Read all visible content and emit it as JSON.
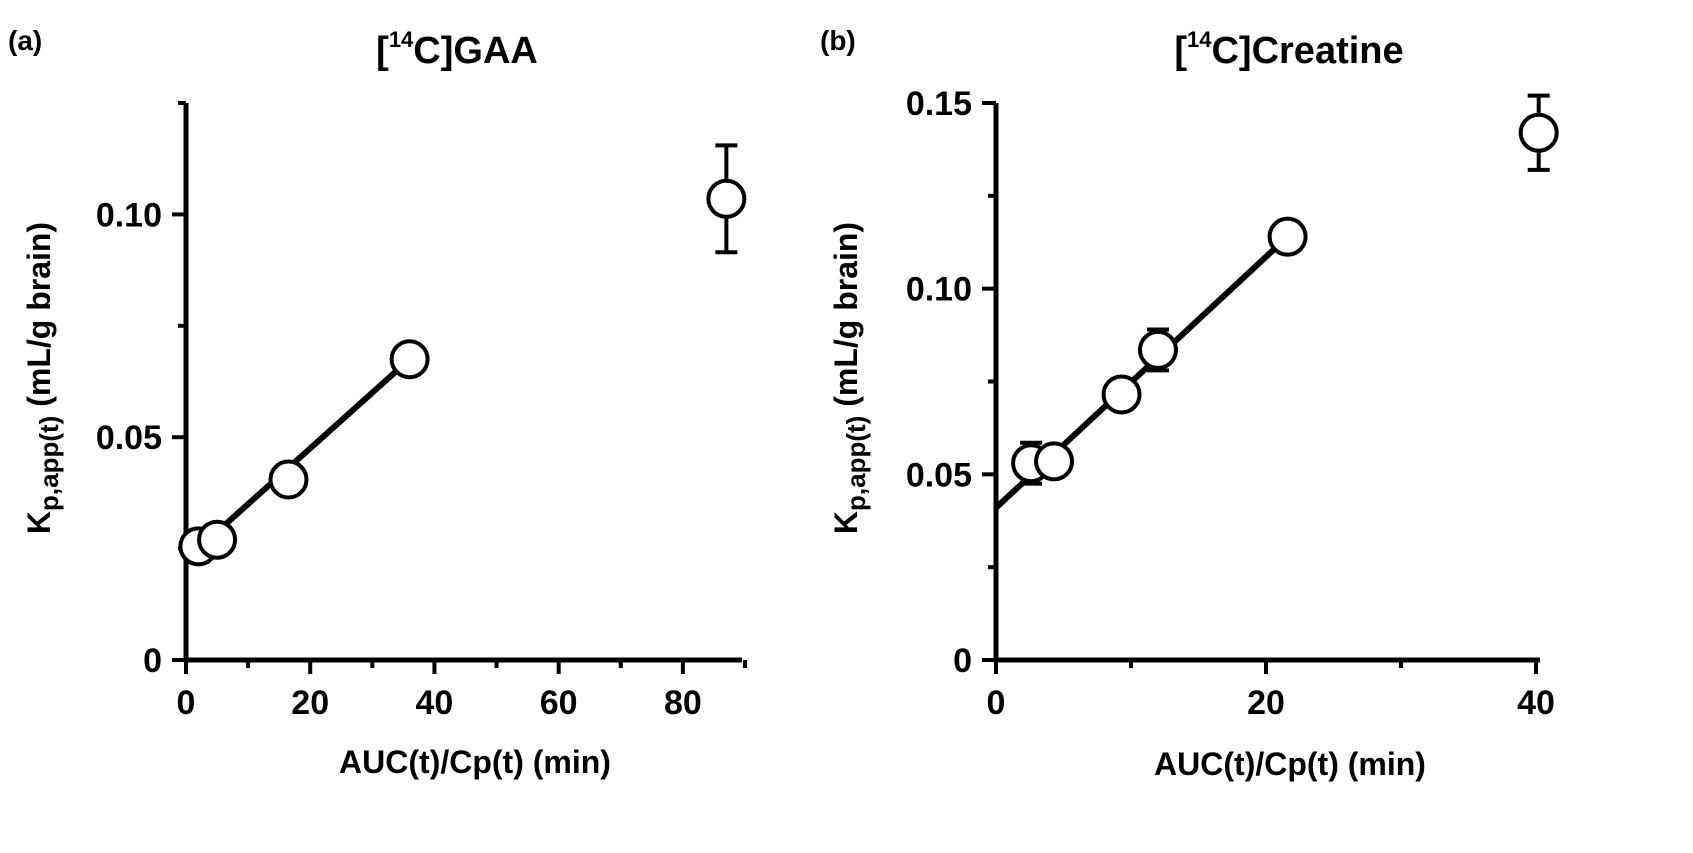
{
  "chart_data": [
    {
      "type": "scatter",
      "panel_label": "(a)",
      "title": {
        "prefix": "[",
        "sup": "14",
        "main": "C]GAA"
      },
      "xlabel": "AUC(t)/Cp(t) (min)",
      "ylabel": {
        "main": "K",
        "sub": "p,app(t)",
        "rest": "  (mL/g brain)"
      },
      "xlim": [
        0,
        90
      ],
      "ylim": [
        0,
        0.125
      ],
      "xticks": [
        0,
        20,
        40,
        60,
        80
      ],
      "xtick_labels": [
        "0",
        "20",
        "40",
        "60",
        "80"
      ],
      "xminor": [
        10,
        30,
        50,
        70,
        90
      ],
      "yticks": [
        0,
        0.05,
        0.1
      ],
      "ytick_labels": [
        "0",
        "0.05",
        "0.10"
      ],
      "yminor": [
        0.025,
        0.075,
        0.125
      ],
      "points": [
        {
          "x": 2.0,
          "y": 0.0255,
          "err": 0.0035
        },
        {
          "x": 5.0,
          "y": 0.027,
          "err": 0.0015
        },
        {
          "x": 16.5,
          "y": 0.0405,
          "err": 0.0015
        },
        {
          "x": 36.0,
          "y": 0.0675,
          "err": 0.0025
        },
        {
          "x": 87.0,
          "y": 0.1035,
          "err": 0.012
        }
      ],
      "fit_line": {
        "x": [
          0,
          36
        ],
        "y": [
          0.0225,
          0.0675
        ]
      }
    },
    {
      "type": "scatter",
      "panel_label": "(b)",
      "title": {
        "prefix": "[",
        "sup": "14",
        "main": "C]Creatine"
      },
      "xlabel": "AUC(t)/Cp(t) (min)",
      "ylabel": {
        "main": "K",
        "sub": "p,app(t)",
        "rest": "  (mL/g brain)"
      },
      "xlim": [
        0,
        40
      ],
      "ylim": [
        0,
        0.15
      ],
      "xticks": [
        0,
        20,
        40
      ],
      "xtick_labels": [
        "0",
        "20",
        "40"
      ],
      "xminor": [
        10,
        30
      ],
      "yticks": [
        0,
        0.05,
        0.1,
        0.15
      ],
      "ytick_labels": [
        "0",
        "0.05",
        "0.10",
        "0.15"
      ],
      "yminor": [
        0.025,
        0.075,
        0.125
      ],
      "points": [
        {
          "x": 2.6,
          "y": 0.053,
          "err": 0.0055
        },
        {
          "x": 4.3,
          "y": 0.0535,
          "err": 0.0015
        },
        {
          "x": 9.3,
          "y": 0.0715,
          "err": 0.0015
        },
        {
          "x": 12.0,
          "y": 0.0835,
          "err": 0.0055
        },
        {
          "x": 21.6,
          "y": 0.114,
          "err": 0.0015
        },
        {
          "x": 40.2,
          "y": 0.142,
          "err": 0.01
        }
      ],
      "fit_line": {
        "x": [
          0,
          21.6
        ],
        "y": [
          0.041,
          0.114
        ]
      }
    }
  ]
}
